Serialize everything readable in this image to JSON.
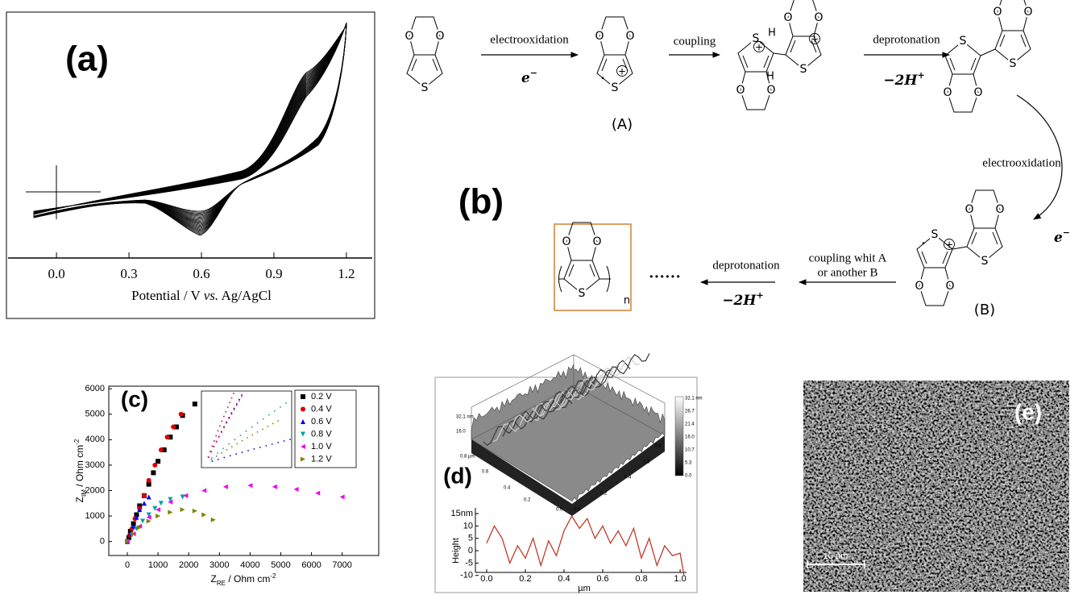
{
  "panel_a": {
    "label": "(a)",
    "xlim": [
      -0.207,
      1.317
    ],
    "xticks": [
      {
        "value": 0,
        "label": "0.0"
      },
      {
        "value": 0.3,
        "label": "0.3"
      },
      {
        "value": 0.6,
        "label": "0.6"
      },
      {
        "value": 0.9,
        "label": "0.9"
      },
      {
        "value": 1.2,
        "label": "1.2"
      }
    ],
    "xlabel": {
      "before": "Potential / V ",
      "italic": "vs.",
      "after": " Ag/AgCl"
    }
  },
  "panel_b": {
    "label": "(b)",
    "steps": [
      {
        "lines": [
          "electrooxidation"
        ],
        "reagent": {
          "text": "e",
          "sup": "−"
        }
      },
      {
        "lines": [
          "coupling"
        ]
      },
      {
        "lines": [
          "deprotonation"
        ],
        "reagent": {
          "text": "−2H",
          "sup": "+"
        }
      },
      {
        "lines": [
          "electrooxidation"
        ],
        "reagent": {
          "text": "e",
          "sup": "−"
        }
      },
      {
        "lines": [
          "coupling whit A",
          "or another B"
        ]
      },
      {
        "lines": [
          "deprotonation"
        ],
        "reagent": {
          "text": "−2H",
          "sup": "+"
        }
      }
    ],
    "ellipsis": "······",
    "molecule_labels": [
      "(A)",
      "(B)"
    ],
    "molecules": [
      {
        "units": [
          {
            "o1": "O",
            "o2": "O",
            "s": "S"
          }
        ],
        "extras": []
      },
      {
        "units": [
          {
            "o1": "O",
            "o2": "O",
            "s": "S"
          }
        ],
        "extras": [
          "·",
          "+"
        ]
      },
      {
        "units": [
          {
            "o1": "O",
            "o2": "O",
            "s": "S"
          },
          {
            "o1": "O",
            "o2": "O",
            "s": "S"
          }
        ],
        "extras": [
          "H",
          "H",
          "+",
          "+"
        ]
      },
      {
        "units": [
          {
            "o1": "O",
            "o2": "O",
            "s": "S"
          },
          {
            "o1": "O",
            "o2": "O",
            "s": "S"
          }
        ],
        "extras": []
      },
      {
        "units": [
          {
            "o1": "O",
            "o2": "O",
            "s": "S"
          },
          {
            "o1": "O",
            "o2": "O",
            "s": "S"
          }
        ],
        "extras": [
          "·",
          "+"
        ]
      },
      {
        "units": [
          {
            "o1": "O",
            "o2": "O",
            "s": "S"
          }
        ],
        "extras": [
          "n"
        ]
      }
    ]
  },
  "panel_c": {
    "label": "(c)",
    "type": "scatter",
    "xlabel": {
      "base": "Z",
      "sub": "RE",
      "rest": " / Ohm cm",
      "sup": "-2"
    },
    "ylabel": {
      "base": "Z",
      "sub": "IM",
      "rest": " / Ohm cm",
      "sup": "-2"
    },
    "xlim": [
      -604,
      8190
    ],
    "ylim": [
      -550,
      6100
    ],
    "xticks": [
      0,
      1000,
      2000,
      3000,
      4000,
      5000,
      6000,
      7000
    ],
    "yticks": [
      0,
      1000,
      2000,
      3000,
      4000,
      5000,
      6000
    ],
    "legend": "top-right",
    "series": [
      {
        "name": "0.2 V",
        "color": "#000000",
        "marker": "square",
        "x": [
          0,
          50,
          100,
          200,
          300,
          400,
          550,
          700,
          850,
          1000,
          1200,
          1400,
          1600,
          1800,
          2200
        ],
        "y": [
          0,
          150,
          400,
          700,
          1050,
          1400,
          1800,
          2250,
          2700,
          3150,
          3600,
          4100,
          4500,
          4950,
          5400
        ]
      },
      {
        "name": "0.4 V",
        "color": "#e00000",
        "marker": "circle",
        "x": [
          0,
          80,
          150,
          250,
          400,
          550,
          700,
          900,
          1100,
          1300,
          1500,
          1750
        ],
        "y": [
          0,
          250,
          500,
          900,
          1300,
          1800,
          2400,
          3000,
          3600,
          4100,
          4500,
          5000
        ]
      },
      {
        "name": "0.6 V",
        "color": "#0000ee",
        "marker": "triangle-up",
        "x": [
          0,
          100,
          200,
          300,
          400,
          550,
          700
        ],
        "y": [
          0,
          300,
          600,
          950,
          1250,
          1500,
          1750
        ]
      },
      {
        "name": "0.8 V",
        "color": "#00a0a0",
        "marker": "triangle-down",
        "x": [
          0,
          150,
          300,
          500,
          700,
          900,
          1100,
          1400,
          1800
        ],
        "y": [
          0,
          250,
          500,
          800,
          1050,
          1300,
          1500,
          1650,
          1750
        ]
      },
      {
        "name": "1.0 V",
        "color": "#ee00ee",
        "marker": "triangle-left",
        "x": [
          0,
          200,
          400,
          700,
          1000,
          1400,
          1900,
          2500,
          3200,
          4000,
          4800,
          5500,
          6200,
          7000
        ],
        "y": [
          0,
          300,
          600,
          950,
          1250,
          1550,
          1800,
          2000,
          2150,
          2200,
          2150,
          2050,
          1900,
          1750
        ]
      },
      {
        "name": "1.2 V",
        "color": "#808000",
        "marker": "triangle-right",
        "x": [
          0,
          200,
          400,
          700,
          1000,
          1400,
          1800,
          2200,
          2500,
          2800
        ],
        "y": [
          0,
          300,
          550,
          800,
          1000,
          1150,
          1250,
          1200,
          1050,
          850
        ]
      }
    ]
  },
  "panel_d": {
    "label": "(d)",
    "colorbar_labels": [
      "32.1 nm",
      "26.7",
      "21.4",
      "16.0",
      "10.7",
      "5.3",
      "0.0"
    ],
    "surface_labels": [
      "32.1 nm",
      "16.0",
      "0.8 µm",
      "0.6",
      "0.4",
      "0.2",
      "0.0",
      "0.0",
      "0.2",
      "0.4",
      "0.6",
      "0.8"
    ],
    "profile": {
      "type": "line",
      "ylabel": "Height",
      "xlabel": "µm",
      "color": "#c0392b",
      "xlim": [
        -0.058,
        1.033
      ],
      "ylim": [
        -8.8,
        17.3
      ],
      "xticks": [
        {
          "value": 0,
          "label": "0.0"
        },
        {
          "value": 0.2,
          "label": "0.2"
        },
        {
          "value": 0.4,
          "label": "0.4"
        },
        {
          "value": 0.6,
          "label": "0.6"
        },
        {
          "value": 0.8,
          "label": "0.8"
        },
        {
          "value": 1,
          "label": "1.0"
        }
      ],
      "yticks": [
        {
          "value": 15,
          "label": "15nm"
        },
        10,
        5,
        0,
        -5,
        -10
      ],
      "x": [
        0,
        0.04,
        0.08,
        0.12,
        0.16,
        0.2,
        0.24,
        0.28,
        0.32,
        0.36,
        0.4,
        0.44,
        0.48,
        0.52,
        0.56,
        0.6,
        0.64,
        0.68,
        0.72,
        0.76,
        0.8,
        0.84,
        0.88,
        0.92,
        0.96,
        1.0,
        1.02
      ],
      "values": [
        3,
        10,
        5,
        -5,
        2,
        -3,
        5,
        -6,
        4,
        -2,
        8,
        14,
        9,
        13,
        5,
        10,
        3,
        8,
        2,
        9,
        -3,
        5,
        -6,
        2,
        -2,
        -1,
        -10
      ]
    }
  },
  "panel_e": {
    "label": "(e)",
    "scale_bar": "10 µm"
  }
}
